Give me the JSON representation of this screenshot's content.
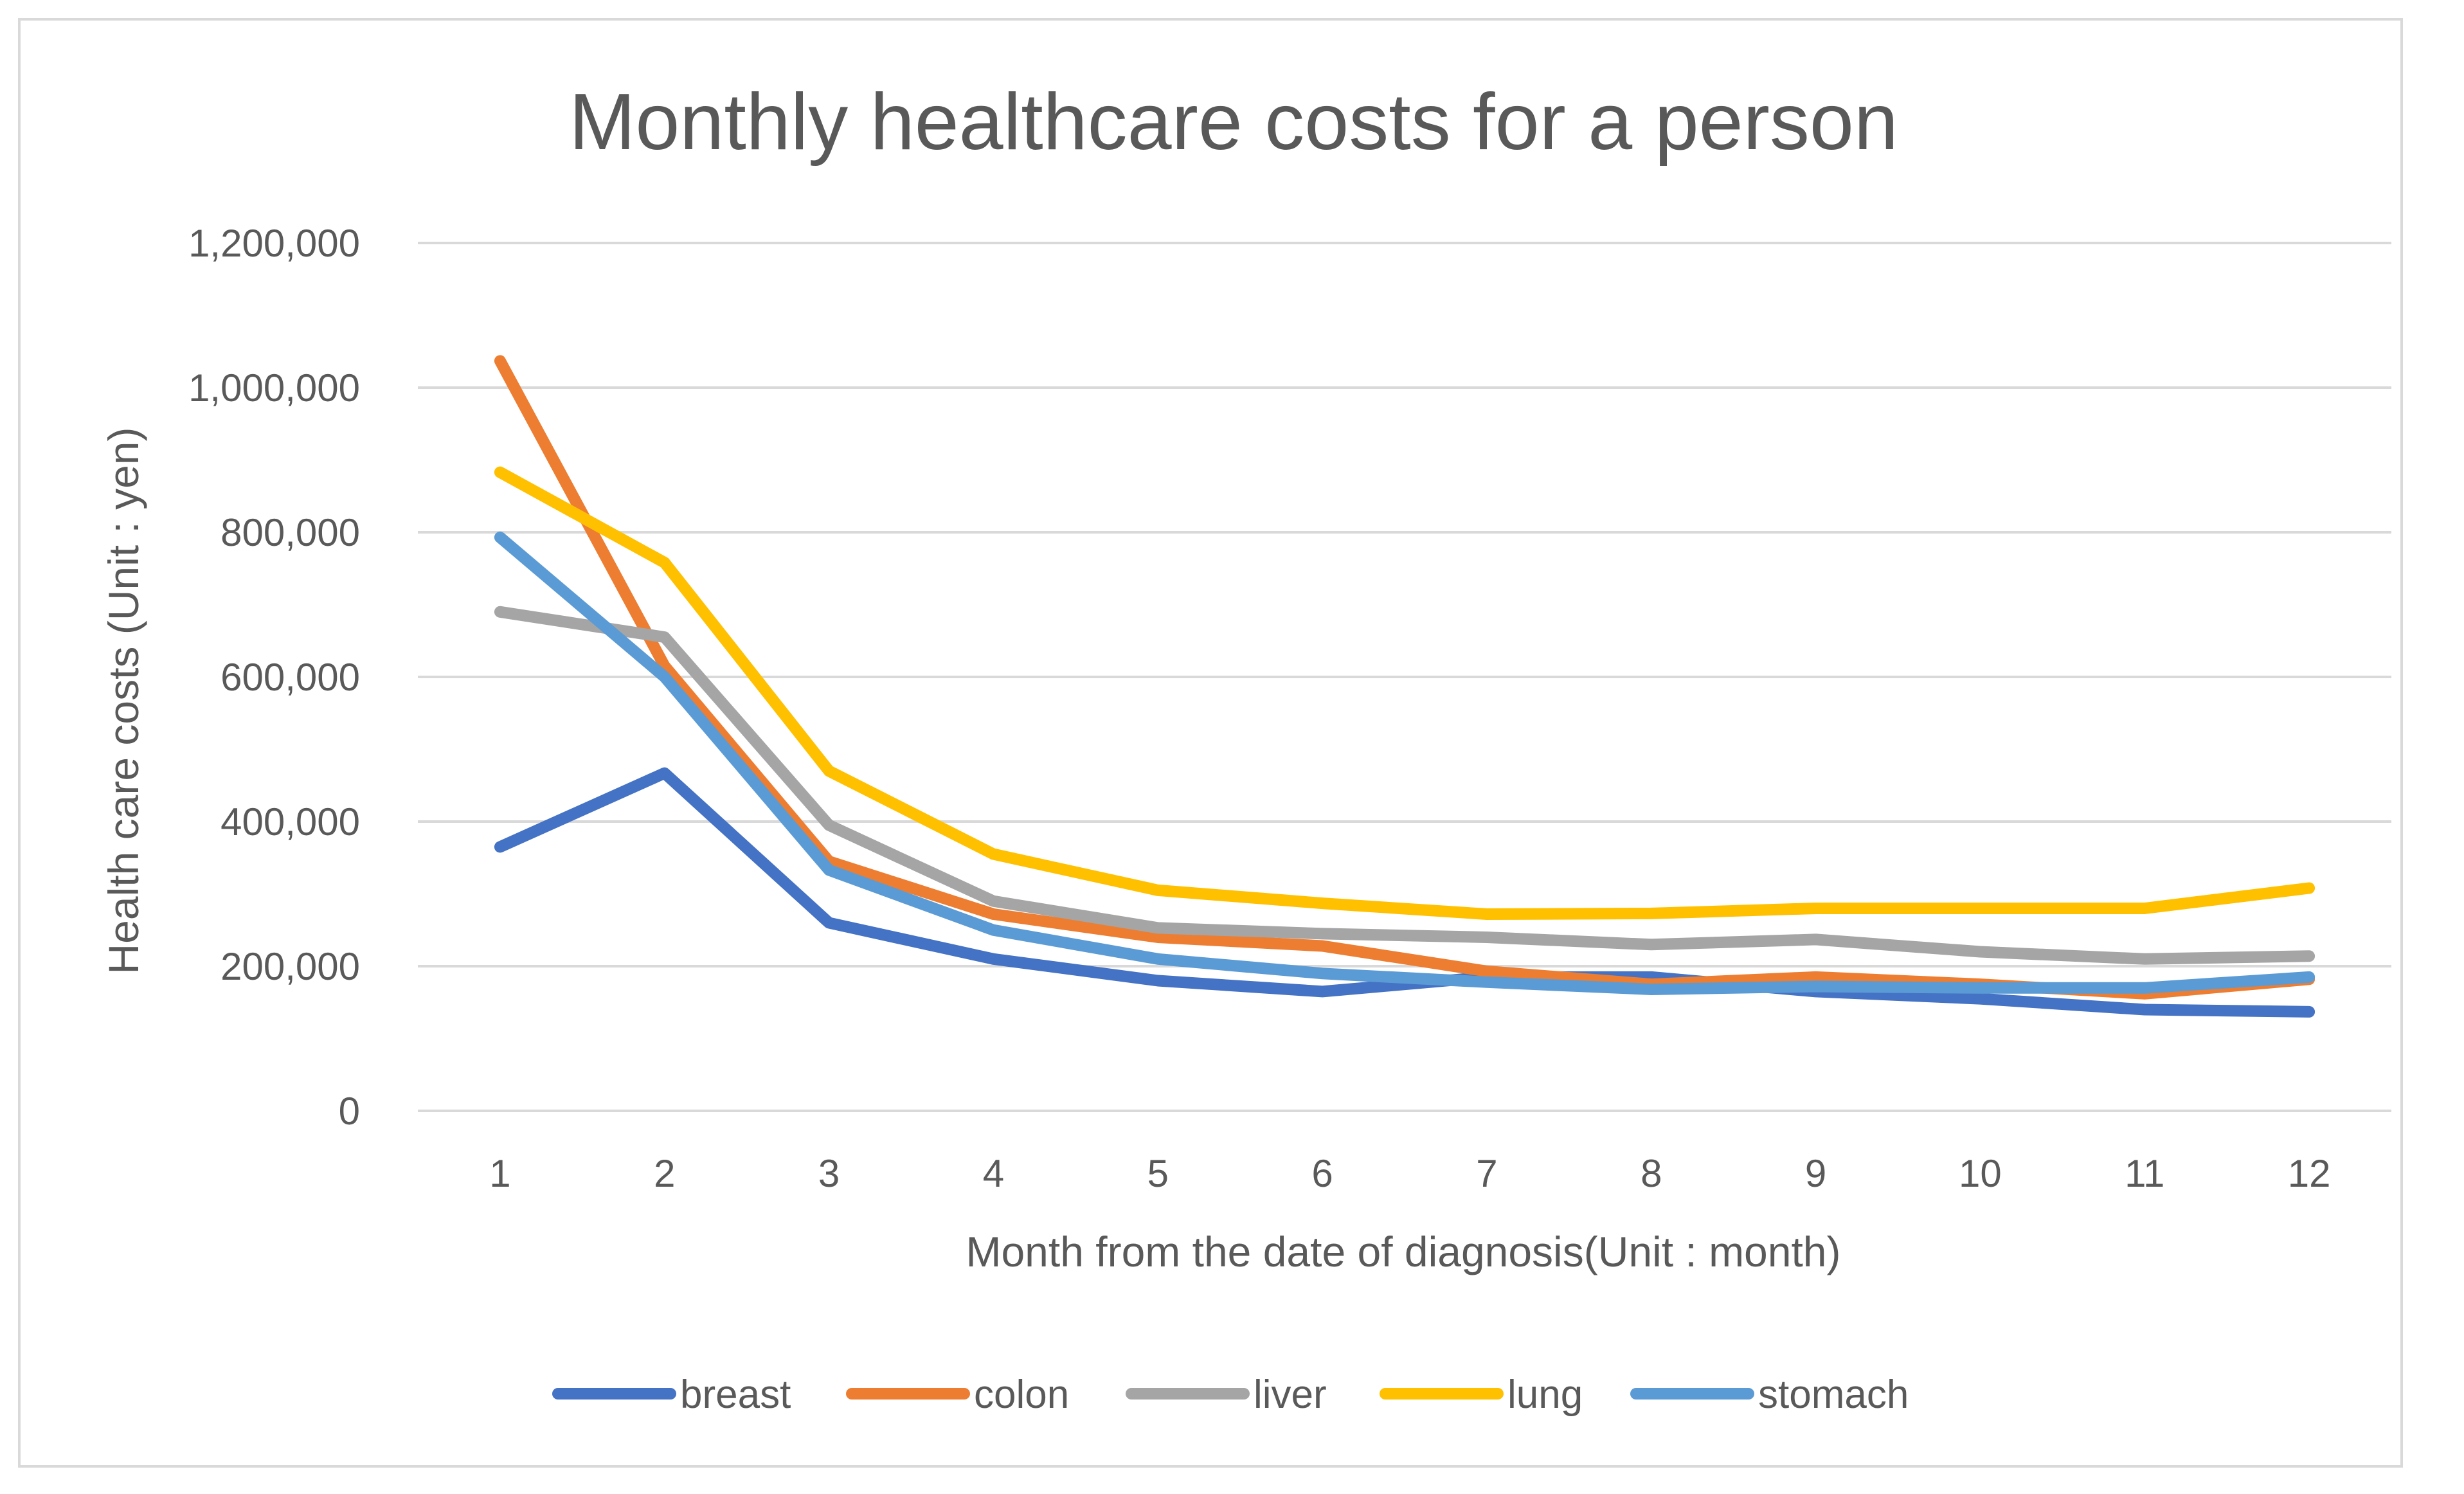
{
  "chart_data": {
    "type": "line",
    "title": "Monthly healthcare costs for a person",
    "xlabel": "Month from the date of diagnosis(Unit : month)",
    "ylabel": "Health care costs (Unit : yen)",
    "categories": [
      "1",
      "2",
      "3",
      "4",
      "5",
      "6",
      "7",
      "8",
      "9",
      "10",
      "11",
      "12"
    ],
    "ylim": [
      0,
      1200000
    ],
    "yticks": [
      0,
      200000,
      400000,
      600000,
      800000,
      1000000,
      1200000
    ],
    "ytick_labels": [
      "0",
      "200,000",
      "400,000",
      "600,000",
      "800,000",
      "1,000,000",
      "1,200,000"
    ],
    "grid": true,
    "legend_position": "bottom",
    "series": [
      {
        "name": "breast",
        "color": "#4472C4",
        "values": [
          365000,
          467000,
          260000,
          210000,
          180000,
          165000,
          185000,
          185000,
          165000,
          155000,
          140000,
          137000
        ]
      },
      {
        "name": "colon",
        "color": "#ED7D31",
        "values": [
          1037000,
          615000,
          345000,
          272000,
          240000,
          228000,
          193000,
          175000,
          185000,
          175000,
          162000,
          182000
        ]
      },
      {
        "name": "liver",
        "color": "#A5A5A5",
        "values": [
          690000,
          655000,
          395000,
          290000,
          253000,
          245000,
          240000,
          230000,
          237000,
          220000,
          210000,
          214000
        ]
      },
      {
        "name": "lung",
        "color": "#FFC000",
        "values": [
          883000,
          758000,
          470000,
          355000,
          305000,
          287000,
          272000,
          273000,
          280000,
          280000,
          280000,
          308000
        ]
      },
      {
        "name": "stomach",
        "color": "#5B9BD5",
        "values": [
          793000,
          600000,
          333000,
          250000,
          210000,
          190000,
          178000,
          168000,
          172000,
          170000,
          170000,
          185000
        ]
      }
    ]
  }
}
